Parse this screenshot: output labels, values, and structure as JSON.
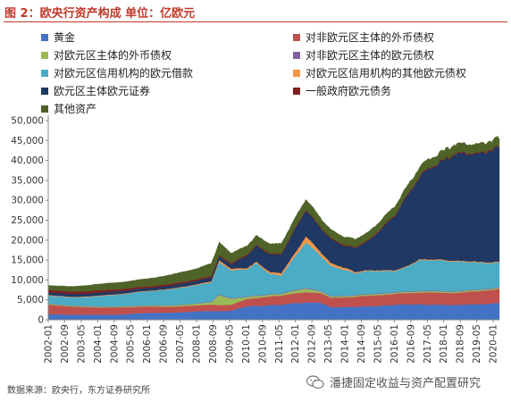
{
  "title": "图 2：欧央行资产构成  单位：亿欧元",
  "source": "数据来源：欧央行，东方证券研究所",
  "watermark": {
    "text": "潘捷固定收益与资产配置研究",
    "icon": "wechat-icon"
  },
  "chart_data": {
    "type": "area",
    "stacked": true,
    "title": "",
    "xlabel": "",
    "ylabel": "",
    "ylim": [
      0,
      50000
    ],
    "yticks": [
      "0",
      "5,000",
      "10,000",
      "15,000",
      "20,000",
      "25,000",
      "30,000",
      "35,000",
      "40,000",
      "45,000",
      "50,000"
    ],
    "xticks": [
      "2002-01",
      "2002-09",
      "2003-05",
      "2004-01",
      "2004-09",
      "2005-05",
      "2006-01",
      "2006-09",
      "2007-05",
      "2008-01",
      "2008-09",
      "2009-05",
      "2010-01",
      "2010-09",
      "2011-05",
      "2012-01",
      "2012-09",
      "2013-05",
      "2014-01",
      "2014-09",
      "2015-05",
      "2016-01",
      "2016-09",
      "2017-05",
      "2018-01",
      "2018-09",
      "2019-05",
      "2020-01"
    ],
    "grid": false,
    "legend_position": "top",
    "x": [
      "2002-01",
      "2003-01",
      "2004-01",
      "2005-01",
      "2006-01",
      "2007-01",
      "2008-01",
      "2008-08",
      "2008-12",
      "2009-06",
      "2010-01",
      "2010-06",
      "2011-01",
      "2011-06",
      "2012-01",
      "2012-06",
      "2013-01",
      "2013-06",
      "2014-01",
      "2014-06",
      "2015-01",
      "2015-06",
      "2016-01",
      "2016-06",
      "2017-01",
      "2017-06",
      "2018-01",
      "2018-06",
      "2019-01",
      "2019-06",
      "2020-01",
      "2020-04"
    ],
    "series": [
      {
        "name": "黄金",
        "color": "#4472c4",
        "values": [
          1400,
          1300,
          1300,
          1350,
          1750,
          1800,
          2150,
          2250,
          2200,
          2300,
          3400,
          3500,
          3700,
          3800,
          4200,
          4300,
          4400,
          3200,
          3200,
          3300,
          3400,
          3500,
          3800,
          3900,
          3900,
          3800,
          3800,
          3700,
          3900,
          3900,
          4100,
          4300
        ]
      },
      {
        "name": "对非欧元区主体的外币债权",
        "color": "#c0504d",
        "values": [
          2400,
          2000,
          1800,
          1800,
          1600,
          1500,
          1500,
          1600,
          1500,
          1500,
          1800,
          2000,
          2200,
          2300,
          2500,
          2600,
          2400,
          2400,
          2400,
          2500,
          2700,
          2700,
          2700,
          2800,
          2900,
          3100,
          3000,
          3000,
          3200,
          3300,
          3400,
          3500
        ]
      },
      {
        "name": "对欧元区主体的外币债权",
        "color": "#9bbb59",
        "values": [
          200,
          200,
          200,
          200,
          200,
          300,
          400,
          600,
          2500,
          1500,
          500,
          500,
          400,
          400,
          700,
          900,
          400,
          300,
          300,
          300,
          300,
          300,
          300,
          300,
          300,
          300,
          300,
          300,
          300,
          300,
          300,
          300
        ]
      },
      {
        "name": "对非欧元区主体的欧元债权",
        "color": "#8064a2",
        "values": [
          100,
          100,
          100,
          100,
          100,
          100,
          100,
          150,
          200,
          150,
          150,
          150,
          150,
          150,
          150,
          150,
          150,
          150,
          150,
          150,
          150,
          150,
          150,
          150,
          150,
          150,
          150,
          150,
          150,
          150,
          150,
          150
        ]
      },
      {
        "name": "对欧元区信用机构的欧元借款",
        "color": "#4bacc6",
        "values": [
          2000,
          2000,
          2500,
          3000,
          3500,
          4000,
          4600,
          4700,
          8000,
          7000,
          6800,
          8000,
          5000,
          4500,
          8500,
          11500,
          9000,
          7500,
          6500,
          5500,
          5700,
          5600,
          5300,
          5800,
          7700,
          7700,
          7600,
          7500,
          7000,
          6700,
          6300,
          6200
        ]
      },
      {
        "name": "对欧元区信用机构的其他欧元债权",
        "color": "#f79646",
        "values": [
          150,
          150,
          150,
          150,
          150,
          150,
          200,
          300,
          500,
          400,
          300,
          300,
          500,
          600,
          800,
          1500,
          900,
          700,
          500,
          300,
          200,
          200,
          200,
          200,
          200,
          200,
          200,
          200,
          200,
          200,
          200,
          200
        ]
      },
      {
        "name": "欧元区主体欧元证券",
        "color": "#1f3864",
        "values": [
          700,
          700,
          700,
          700,
          700,
          800,
          900,
          1000,
          1000,
          1100,
          3000,
          4000,
          4500,
          4600,
          6000,
          6500,
          6000,
          6000,
          5500,
          6000,
          7500,
          10000,
          13500,
          16800,
          20500,
          22800,
          24800,
          26700,
          27000,
          27000,
          28400,
          28800
        ]
      },
      {
        "name": "一般政府欧元债务",
        "color": "#7f1f1f",
        "values": [
          600,
          600,
          600,
          500,
          400,
          400,
          350,
          300,
          300,
          300,
          300,
          250,
          250,
          250,
          250,
          250,
          250,
          250,
          250,
          250,
          250,
          250,
          250,
          250,
          250,
          250,
          250,
          250,
          250,
          250,
          250,
          250
        ]
      },
      {
        "name": "其他资产",
        "color": "#4f6228",
        "values": [
          1100,
          1300,
          1550,
          1700,
          1900,
          2300,
          2700,
          3200,
          3200,
          2500,
          2200,
          2300,
          2400,
          2500,
          2600,
          2600,
          2300,
          2100,
          2000,
          2000,
          2000,
          2100,
          2200,
          2200,
          2300,
          2200,
          2300,
          2300,
          2200,
          2200,
          2200,
          2100
        ]
      }
    ]
  }
}
